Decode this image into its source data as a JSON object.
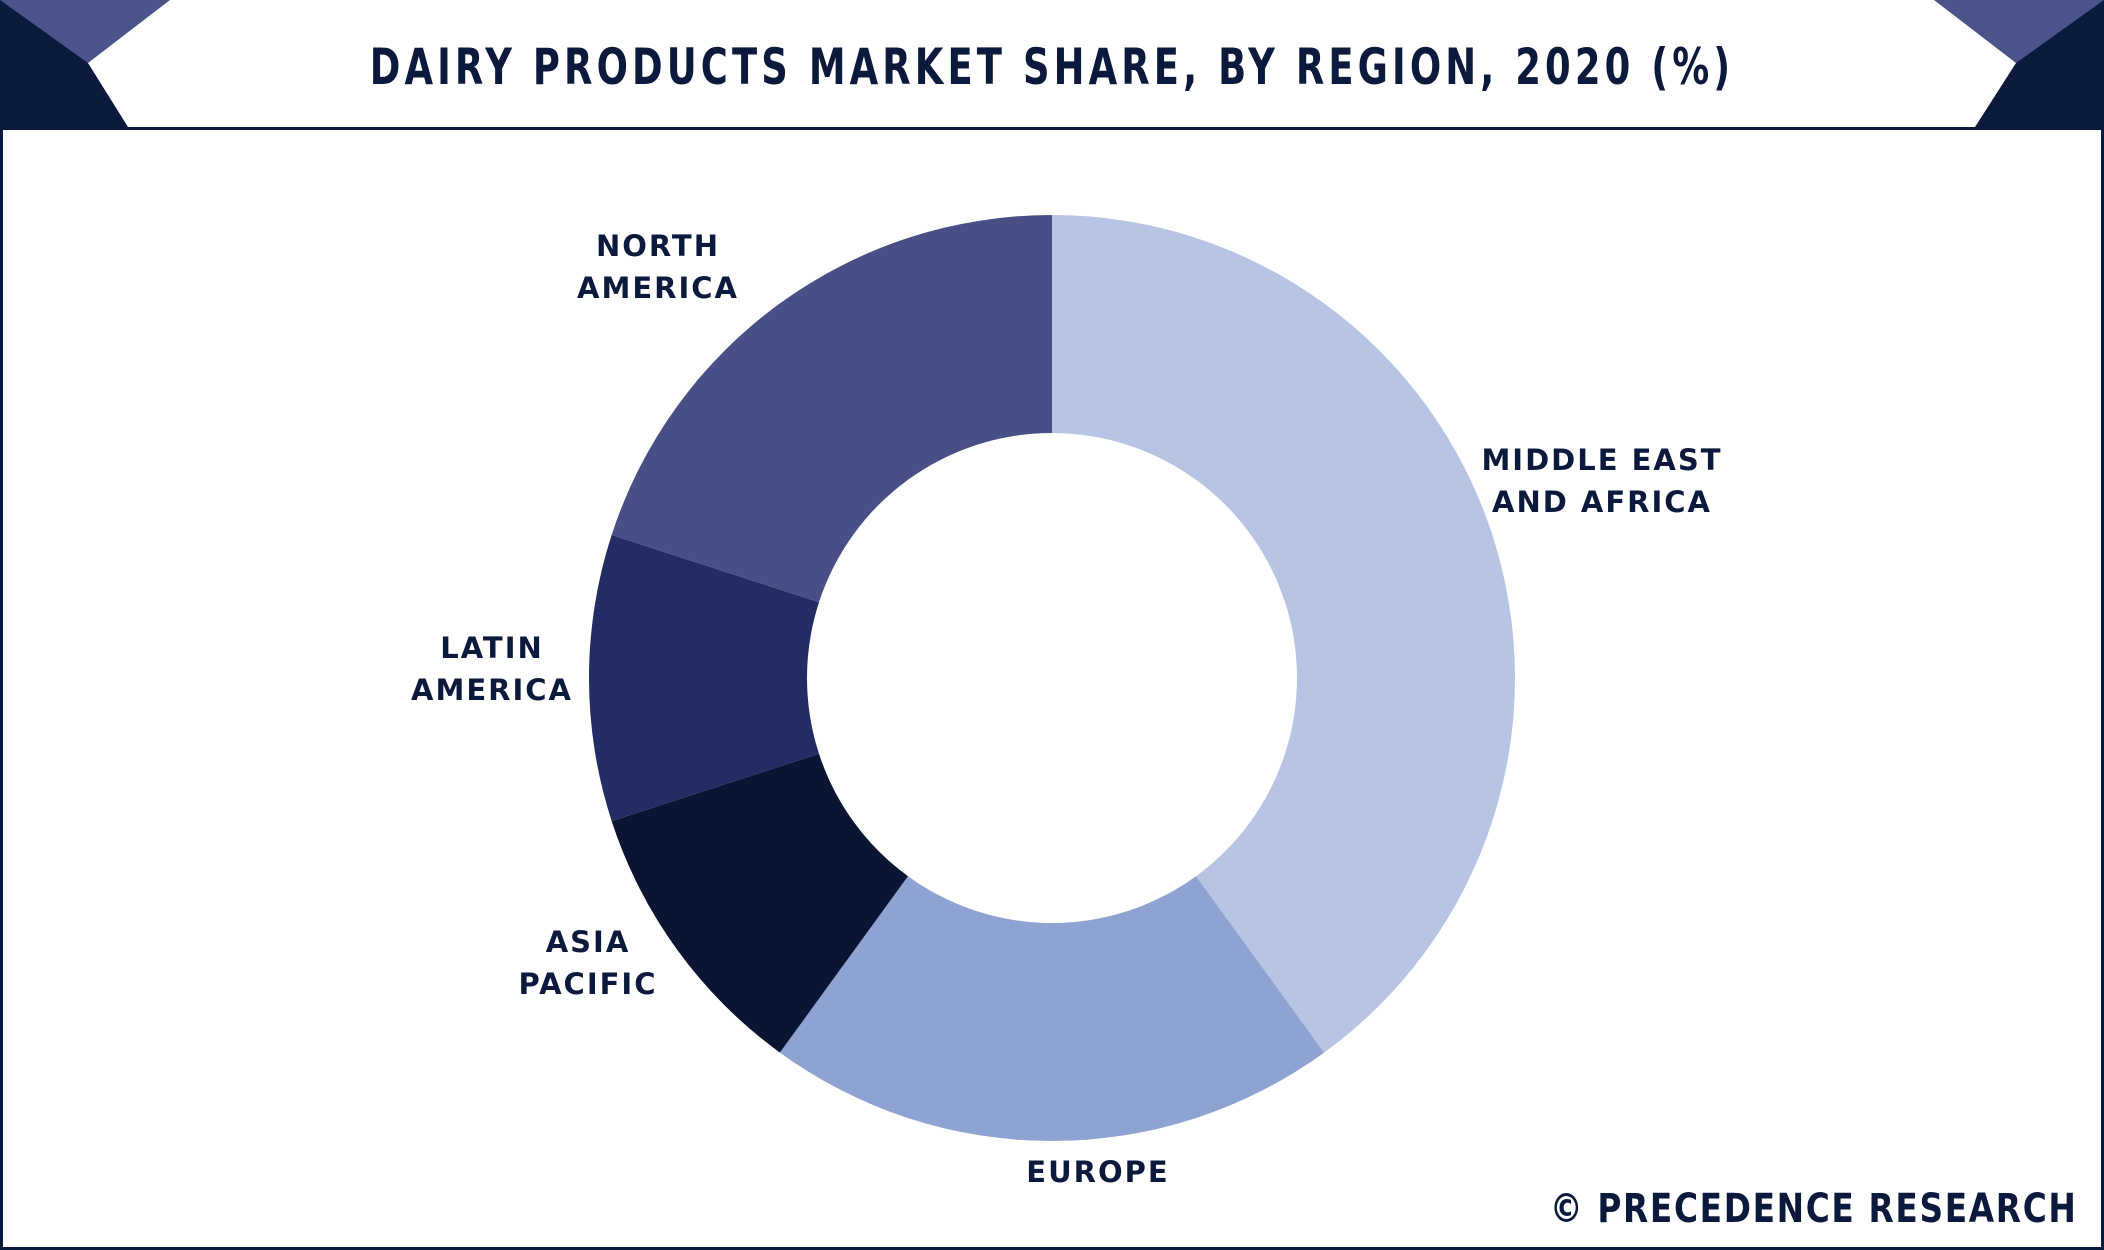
{
  "header": {
    "title": "DAIRY PRODUCTS MARKET SHARE, BY REGION, 2020 (%)"
  },
  "colors": {
    "navy": "#0b1a3c",
    "accent": "#4a548b",
    "middle_east_africa": "#b8c4e3",
    "europe": "#8fa3d3",
    "asia_pacific": "#0a1433",
    "latin_america": "#232c63",
    "north_america": "#474f86"
  },
  "chart_data": {
    "type": "pie",
    "donut": true,
    "categories": [
      "MIDDLE EAST AND AFRICA",
      "EUROPE",
      "ASIA PACIFIC",
      "LATIN AMERICA",
      "NORTH AMERICA"
    ],
    "label_lines": [
      [
        "MIDDLE EAST",
        "AND AFRICA"
      ],
      [
        "EUROPE"
      ],
      [
        "ASIA",
        "PACIFIC"
      ],
      [
        "LATIN",
        "AMERICA"
      ],
      [
        "NORTH",
        "AMERICA"
      ]
    ],
    "values": [
      40,
      20,
      10,
      10,
      20
    ],
    "colors": [
      "#b8c4e3",
      "#8fa3d3",
      "#0a1433",
      "#232c63",
      "#474f86"
    ],
    "title": "DAIRY PRODUCTS MARKET SHARE, BY REGION, 2020 (%)"
  },
  "footer": {
    "brand": "© PRECEDENCE RESEARCH"
  }
}
